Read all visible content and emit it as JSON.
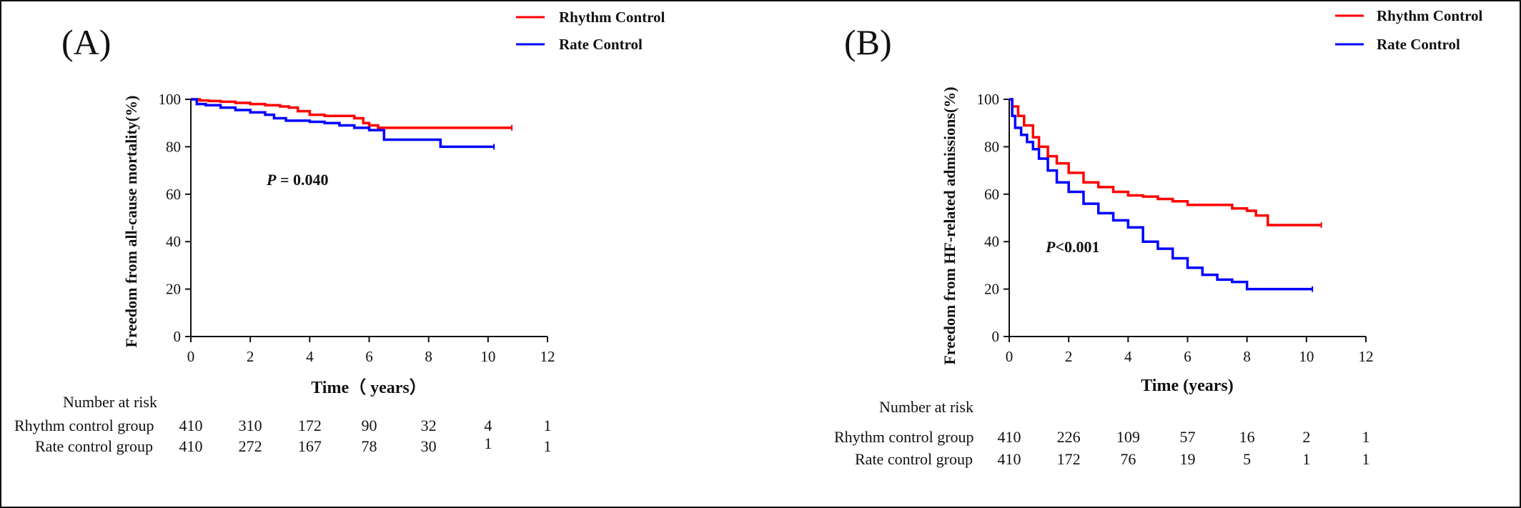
{
  "chart_data": [
    {
      "type": "line",
      "panel_label": "(A)",
      "xlabel": "Time（ years）",
      "ylabel": "Freedom from all-cause mortality(%)",
      "xlim": [
        0,
        12
      ],
      "ylim": [
        0,
        100
      ],
      "x_ticks": [
        "0",
        "2",
        "4",
        "6",
        "8",
        "10",
        "12"
      ],
      "y_ticks": [
        "0",
        "20",
        "40",
        "60",
        "80",
        "100"
      ],
      "annotation": {
        "italic": "P",
        "rest": " = 0.040"
      },
      "legend": {
        "placement": "top-right"
      },
      "series": [
        {
          "name": "Rhythm Control",
          "color": "#ff0000",
          "x": [
            0,
            0.3,
            0.6,
            1.0,
            1.5,
            2.0,
            2.5,
            3.0,
            3.3,
            3.6,
            4.0,
            4.5,
            5.0,
            5.5,
            5.8,
            6.0,
            6.3,
            7.0,
            8.0,
            9.0,
            10.0,
            10.8
          ],
          "y": [
            100,
            99.5,
            99.3,
            99,
            98.5,
            98,
            97.5,
            97,
            96.5,
            95,
            93.5,
            93,
            93,
            92,
            90,
            89,
            88,
            88,
            88,
            88,
            88,
            88
          ]
        },
        {
          "name": "Rate Control",
          "color": "#0000ff",
          "x": [
            0,
            0.2,
            0.5,
            1.0,
            1.5,
            2.0,
            2.5,
            2.8,
            3.2,
            4.0,
            4.5,
            5.0,
            5.5,
            6.0,
            6.5,
            7.0,
            8.0,
            8.4,
            9.0,
            10.0,
            10.2
          ],
          "y": [
            100,
            98,
            97.5,
            96.5,
            95.5,
            94.5,
            93.5,
            92,
            91,
            90.5,
            90,
            89,
            88,
            87,
            83,
            83,
            83,
            80,
            80,
            80,
            80
          ]
        }
      ],
      "risk_table": {
        "title": "Number at risk",
        "rows": [
          {
            "label": "Rhythm control group",
            "values": [
              "410",
              "310",
              "172",
              "90",
              "32",
              "4",
              "1"
            ]
          },
          {
            "label": "Rate control group",
            "values": [
              "410",
              "272",
              "167",
              "78",
              "30",
              "1",
              "1"
            ]
          }
        ]
      }
    },
    {
      "type": "line",
      "panel_label": "(B)",
      "xlabel": "Time (years)",
      "ylabel": "Freedom from HF-related admissions(%)",
      "xlim": [
        0,
        12
      ],
      "ylim": [
        0,
        100
      ],
      "x_ticks": [
        "0",
        "2",
        "4",
        "6",
        "8",
        "10",
        "12"
      ],
      "y_ticks": [
        "0",
        "20",
        "40",
        "60",
        "80",
        "100"
      ],
      "annotation": {
        "italic": "P",
        "rest": "<0.001"
      },
      "legend": {
        "placement": "top-right"
      },
      "series": [
        {
          "name": "Rhythm Control",
          "color": "#ff0000",
          "x": [
            0,
            0.1,
            0.3,
            0.5,
            0.8,
            1.0,
            1.3,
            1.6,
            2.0,
            2.5,
            3.0,
            3.5,
            4.0,
            4.5,
            5.0,
            5.5,
            6.0,
            7.0,
            7.5,
            8.0,
            8.3,
            8.7,
            9.0,
            10.0,
            10.5
          ],
          "y": [
            100,
            97,
            93,
            89,
            84,
            80,
            76,
            73,
            69,
            65,
            63,
            61,
            59.5,
            59,
            58,
            57,
            55.5,
            55.5,
            54,
            53,
            51,
            47,
            47,
            47,
            47
          ]
        },
        {
          "name": "Rate Control",
          "color": "#0000ff",
          "x": [
            0,
            0.1,
            0.2,
            0.4,
            0.6,
            0.8,
            1.0,
            1.3,
            1.6,
            2.0,
            2.5,
            3.0,
            3.5,
            4.0,
            4.5,
            5.0,
            5.5,
            6.0,
            6.5,
            7.0,
            7.5,
            8.0,
            9.0,
            10.0,
            10.2
          ],
          "y": [
            100,
            93,
            88,
            85,
            82,
            79,
            75,
            70,
            65,
            61,
            56,
            52,
            49,
            46,
            40,
            37,
            33,
            29,
            26,
            24,
            23,
            20,
            20,
            20,
            20
          ]
        }
      ],
      "risk_table": {
        "title": "Number at risk",
        "rows": [
          {
            "label": "Rhythm control group",
            "values": [
              "410",
              "226",
              "109",
              "57",
              "16",
              "2",
              "1"
            ]
          },
          {
            "label": "Rate control group",
            "values": [
              "410",
              "172",
              "76",
              "19",
              "5",
              "1",
              "1"
            ]
          }
        ]
      }
    }
  ]
}
